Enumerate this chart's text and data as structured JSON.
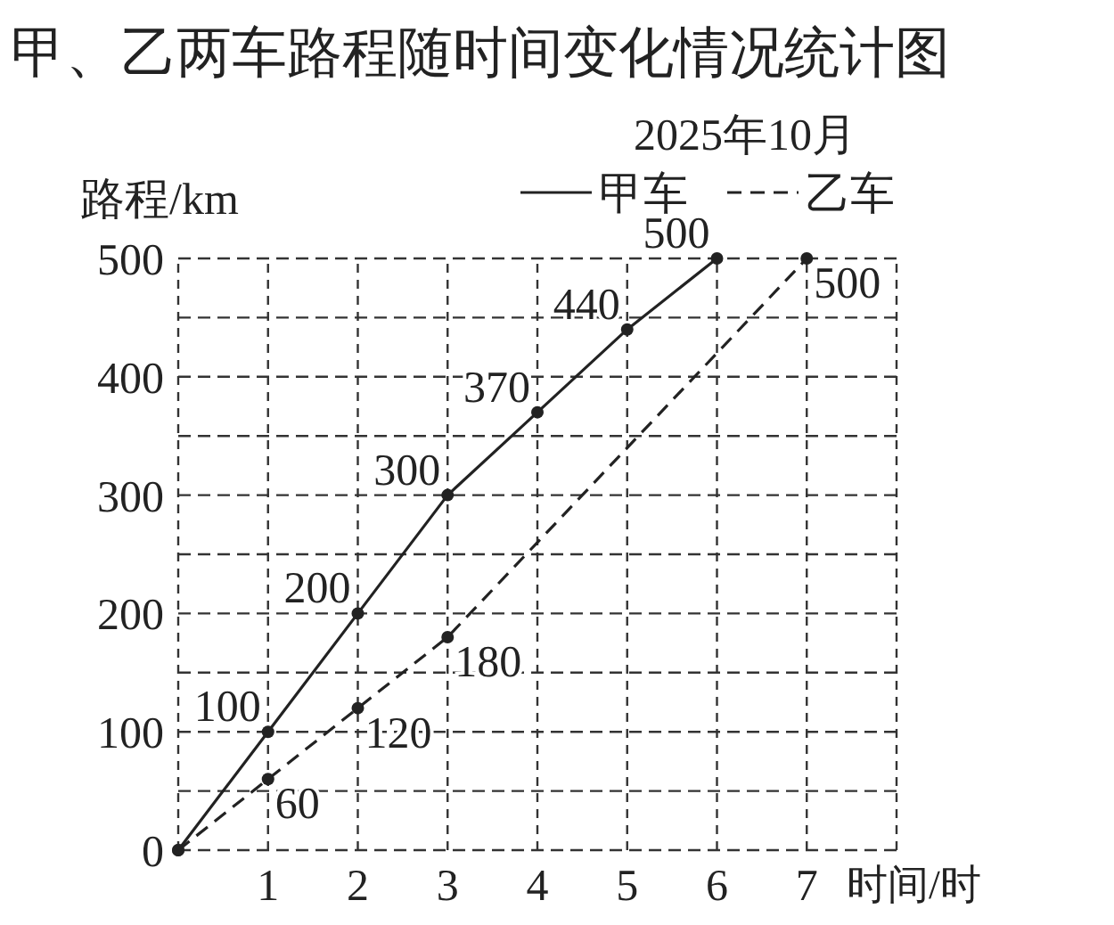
{
  "chart_data": {
    "type": "line",
    "title": "甲、乙两车路程随时间变化情况统计图",
    "subtitle": "2025年10月",
    "xlabel": "时间/时",
    "ylabel": "路程/km",
    "xlim": [
      0,
      8
    ],
    "ylim": [
      0,
      500
    ],
    "xticks": [
      {
        "value": 0,
        "label": null
      },
      1,
      2,
      3,
      4,
      5,
      6,
      7,
      {
        "value": 8,
        "label": null
      }
    ],
    "yticks": [
      0,
      {
        "value": 50,
        "label": null
      },
      100,
      {
        "value": 150,
        "label": null
      },
      200,
      {
        "value": 250,
        "label": null
      },
      300,
      {
        "value": 350,
        "label": null
      },
      400,
      {
        "value": 450,
        "label": null
      },
      500
    ],
    "grid": true,
    "legend": "top right",
    "marker": "circle",
    "series": [
      {
        "name": "甲车",
        "color": "#222222",
        "line_style": "solid",
        "x": [
          0,
          1,
          2,
          3,
          4,
          5,
          6
        ],
        "values": [
          0,
          100,
          200,
          300,
          370,
          440,
          500
        ],
        "value_labels": [
          null,
          "100",
          "200",
          "300",
          "370",
          "440",
          "500"
        ]
      },
      {
        "name": "乙车",
        "color": "#222222",
        "line_style": "dashed",
        "x": [
          0,
          1,
          2,
          3,
          7
        ],
        "values": [
          0,
          60,
          120,
          180,
          500
        ],
        "value_labels": [
          null,
          "60",
          "120",
          "180",
          "500"
        ]
      }
    ]
  }
}
